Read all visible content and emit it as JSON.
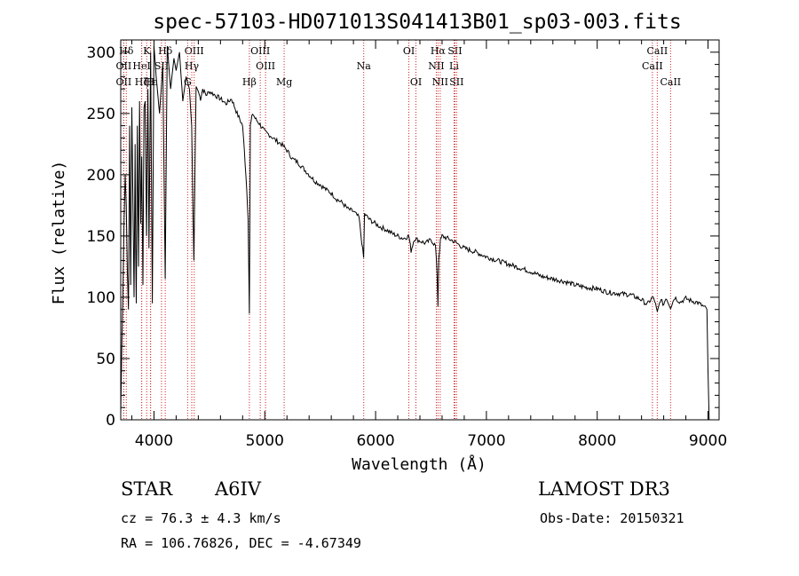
{
  "chart_data": {
    "type": "line",
    "title": "spec-57103-HD071013S041413B01_sp03-003.fits",
    "xlabel": "Wavelength (Å)",
    "ylabel": "Flux (relative)",
    "xlim": [
      3700,
      9100
    ],
    "ylim": [
      0,
      310
    ],
    "x_ticks": [
      4000,
      5000,
      6000,
      7000,
      8000,
      9000
    ],
    "y_ticks": [
      0,
      50,
      100,
      150,
      200,
      250,
      300
    ],
    "series": [
      {
        "name": "spectrum",
        "x": [
          3700,
          3710,
          3720,
          3730,
          3740,
          3750,
          3760,
          3770,
          3780,
          3790,
          3800,
          3810,
          3820,
          3830,
          3835,
          3840,
          3850,
          3860,
          3870,
          3880,
          3889,
          3900,
          3910,
          3920,
          3933,
          3945,
          3955,
          3970,
          3985,
          4000,
          4020,
          4050,
          4080,
          4101,
          4120,
          4150,
          4180,
          4200,
          4230,
          4260,
          4290,
          4320,
          4340,
          4360,
          4380,
          4400,
          4420,
          4440,
          4470,
          4500,
          4550,
          4600,
          4650,
          4700,
          4750,
          4800,
          4830,
          4850,
          4861,
          4870,
          4890,
          4920,
          4950,
          4980,
          5000,
          5050,
          5100,
          5150,
          5200,
          5250,
          5300,
          5350,
          5400,
          5450,
          5500,
          5550,
          5600,
          5650,
          5700,
          5750,
          5800,
          5850,
          5892,
          5900,
          5950,
          6000,
          6050,
          6100,
          6150,
          6200,
          6250,
          6300,
          6320,
          6350,
          6400,
          6450,
          6500,
          6540,
          6555,
          6563,
          6570,
          6585,
          6600,
          6650,
          6700,
          6750,
          6800,
          6900,
          7000,
          7100,
          7200,
          7300,
          7400,
          7500,
          7600,
          7700,
          7800,
          7900,
          8000,
          8100,
          8200,
          8300,
          8400,
          8450,
          8498,
          8520,
          8542,
          8570,
          8600,
          8620,
          8662,
          8700,
          8750,
          8800,
          8850,
          8900,
          8950,
          8990,
          9000,
          9010
        ],
        "y": [
          5,
          60,
          105,
          160,
          200,
          175,
          120,
          90,
          240,
          110,
          255,
          180,
          100,
          225,
          140,
          95,
          240,
          125,
          260,
          160,
          215,
          110,
          255,
          260,
          150,
          270,
          140,
          300,
          95,
          305,
          280,
          250,
          290,
          115,
          305,
          270,
          295,
          285,
          300,
          260,
          280,
          270,
          240,
          130,
          272,
          268,
          262,
          270,
          265,
          268,
          265,
          262,
          258,
          262,
          250,
          240,
          200,
          165,
          87,
          240,
          250,
          245,
          242,
          238,
          235,
          232,
          228,
          225,
          220,
          213,
          210,
          205,
          200,
          195,
          192,
          188,
          185,
          180,
          177,
          172,
          170,
          165,
          132,
          168,
          163,
          160,
          157,
          155,
          152,
          150,
          148,
          150,
          138,
          148,
          146,
          144,
          147,
          142,
          120,
          93,
          132,
          146,
          150,
          148,
          146,
          143,
          140,
          137,
          133,
          130,
          127,
          124,
          121,
          117,
          115,
          113,
          110,
          108,
          107,
          104,
          103,
          102,
          98,
          94,
          100,
          97,
          87,
          98,
          94,
          100,
          92,
          100,
          96,
          99,
          97,
          96,
          93,
          90,
          40,
          0
        ]
      }
    ],
    "line_markers": [
      {
        "label": "Hδ",
        "x": 3750,
        "row": 1
      },
      {
        "label": "OII",
        "x": 3727,
        "row": 2
      },
      {
        "label": "OII",
        "x": 3727,
        "row": 3
      },
      {
        "label": "K",
        "x": 3934,
        "row": 1
      },
      {
        "label": "Hε",
        "x": 3970,
        "row": 3
      },
      {
        "label": "HeI",
        "x": 3889,
        "row": 2
      },
      {
        "label": "Hζ",
        "x": 3889,
        "row": 3
      },
      {
        "label": "Hδ",
        "x": 4102,
        "row": 1
      },
      {
        "label": "SII",
        "x": 4068,
        "row": 2
      },
      {
        "label": "H",
        "x": 3968,
        "row": 3
      },
      {
        "label": "OIII",
        "x": 4363,
        "row": 1
      },
      {
        "label": "Hγ",
        "x": 4341,
        "row": 2
      },
      {
        "label": "G",
        "x": 4304,
        "row": 3
      },
      {
        "label": "OIII",
        "x": 4959,
        "row": 1
      },
      {
        "label": "OIII",
        "x": 5007,
        "row": 2
      },
      {
        "label": "Hβ",
        "x": 4861,
        "row": 3
      },
      {
        "label": "Mg",
        "x": 5175,
        "row": 3
      },
      {
        "label": "Na",
        "x": 5893,
        "row": 2
      },
      {
        "label": "OI",
        "x": 6300,
        "row": 1
      },
      {
        "label": "OI",
        "x": 6364,
        "row": 3
      },
      {
        "label": "Hα",
        "x": 6563,
        "row": 1
      },
      {
        "label": "SII",
        "x": 6716,
        "row": 1
      },
      {
        "label": "NII",
        "x": 6548,
        "row": 2
      },
      {
        "label": "Li",
        "x": 6708,
        "row": 2
      },
      {
        "label": "NII",
        "x": 6583,
        "row": 3
      },
      {
        "label": "SII",
        "x": 6731,
        "row": 3
      },
      {
        "label": "CaII",
        "x": 8542,
        "row": 1
      },
      {
        "label": "CaII",
        "x": 8498,
        "row": 2
      },
      {
        "label": "CaII",
        "x": 8662,
        "row": 3
      }
    ]
  },
  "info": {
    "object_class": "STAR",
    "subclass": "A6IV",
    "survey": "LAMOST DR3",
    "cz": "cz = 76.3 ± 4.3 km/s",
    "obs_date": "Obs-Date: 20150321",
    "coords": "RA = 106.76826, DEC =  -4.67349"
  }
}
